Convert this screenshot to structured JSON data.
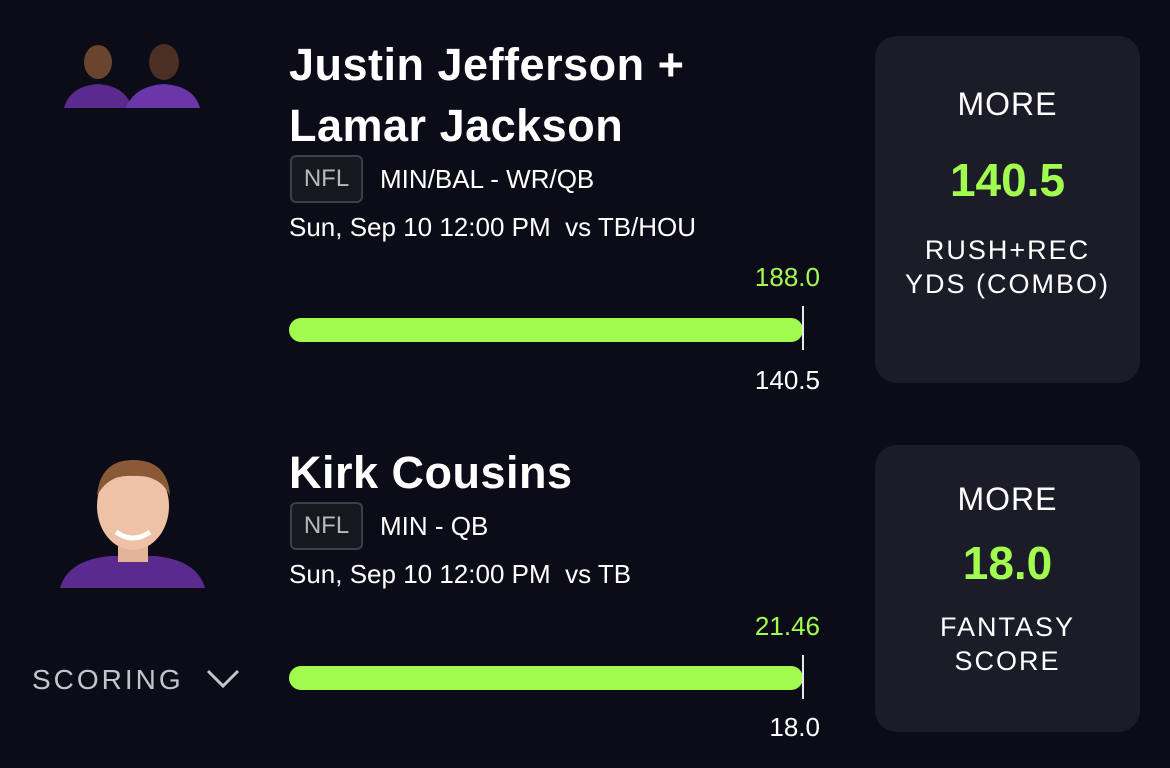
{
  "picks": [
    {
      "name": "Justin Jefferson + Lamar Jackson",
      "league": "NFL",
      "team_position": "MIN/BAL - WR/QB",
      "game": "Sun, Sep 10 12:00 PM  vs TB/HOU",
      "actual": "188.0",
      "line": "140.5",
      "card": {
        "pick": "MORE",
        "line": "140.5",
        "stat": "RUSH+REC YDS (COMBO)"
      }
    },
    {
      "name": "Kirk Cousins",
      "league": "NFL",
      "team_position": "MIN - QB",
      "game": "Sun, Sep 10 12:00 PM  vs TB",
      "actual": "21.46",
      "line": "18.0",
      "card": {
        "pick": "MORE",
        "line": "18.0",
        "stat": "FANTASY SCORE"
      }
    }
  ],
  "scoring": "SCORING"
}
